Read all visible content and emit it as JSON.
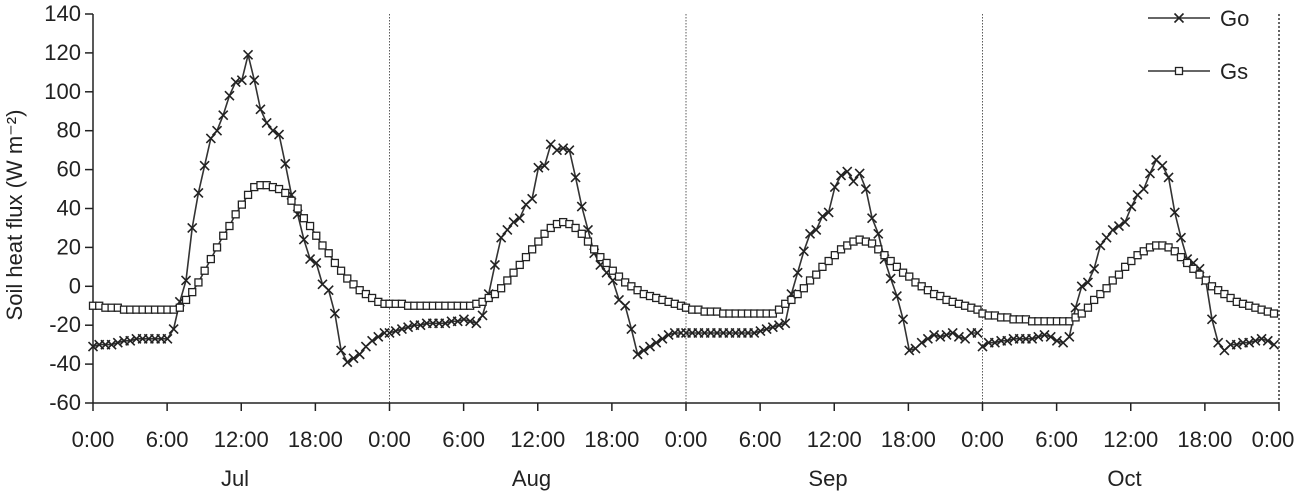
{
  "chart_data": {
    "type": "line",
    "title": "",
    "xlabel": "",
    "ylabel": "Soil heat flux (W m⁻²)",
    "ylim": [
      -60,
      140
    ],
    "yticks": [
      -60,
      -40,
      -20,
      0,
      20,
      40,
      60,
      80,
      100,
      120,
      140
    ],
    "xtick_labels": [
      "0:00",
      "6:00",
      "12:00",
      "18:00",
      "0:00",
      "6:00",
      "12:00",
      "18:00",
      "0:00",
      "6:00",
      "12:00",
      "18:00",
      "0:00",
      "6:00",
      "12:00",
      "18:00",
      "0:00"
    ],
    "panels": [
      "Jul",
      "Aug",
      "Sep",
      "Oct"
    ],
    "grid": false,
    "legend": "top-right",
    "series": [
      {
        "name": "Go",
        "marker": "x",
        "values": [
          [
            -31,
            -30,
            -30,
            -30,
            -29,
            -28,
            -28,
            -27,
            -27,
            -27,
            -27,
            -27,
            -27,
            -22,
            -8,
            3,
            30,
            48,
            62,
            76,
            80,
            88,
            98,
            105,
            106,
            119,
            106,
            91,
            84,
            80,
            78,
            63,
            47,
            37,
            24,
            14,
            12,
            1,
            -2,
            -14,
            -33,
            -39,
            -37,
            -35,
            -31,
            -28,
            -26,
            -24
          ],
          [
            -24,
            -23,
            -22,
            -21,
            -20,
            -20,
            -19,
            -19,
            -19,
            -19,
            -18,
            -18,
            -17,
            -18,
            -19,
            -15,
            -4,
            11,
            25,
            29,
            33,
            35,
            42,
            45,
            61,
            62,
            73,
            70,
            71,
            70,
            56,
            41,
            29,
            17,
            11,
            7,
            3,
            -7,
            -10,
            -22,
            -35,
            -33,
            -31,
            -29,
            -27,
            -25,
            -24,
            -24
          ],
          [
            -24,
            -24,
            -24,
            -24,
            -24,
            -24,
            -24,
            -24,
            -24,
            -24,
            -24,
            -24,
            -23,
            -22,
            -21,
            -20,
            -19,
            -4,
            7,
            18,
            27,
            29,
            36,
            38,
            51,
            57,
            59,
            54,
            58,
            50,
            35,
            27,
            14,
            4,
            -5,
            -17,
            -33,
            -32,
            -29,
            -27,
            -25,
            -26,
            -25,
            -24,
            -26,
            -27,
            -24,
            -24
          ],
          [
            -31,
            -29,
            -29,
            -28,
            -28,
            -27,
            -27,
            -27,
            -27,
            -26,
            -25,
            -26,
            -28,
            -29,
            -26,
            -11,
            0,
            2,
            9,
            21,
            25,
            29,
            31,
            33,
            41,
            47,
            50,
            58,
            65,
            62,
            56,
            38,
            25,
            14,
            12,
            9,
            3,
            -17,
            -29,
            -33,
            -30,
            -30,
            -29,
            -29,
            -28,
            -27,
            -28,
            -30
          ]
        ]
      },
      {
        "name": "Gs",
        "marker": "square",
        "values": [
          [
            -10,
            -10,
            -11,
            -11,
            -11,
            -12,
            -12,
            -12,
            -12,
            -12,
            -12,
            -12,
            -12,
            -12,
            -11,
            -7,
            -3,
            2,
            8,
            14,
            20,
            26,
            31,
            37,
            42,
            47,
            51,
            52,
            52,
            51,
            50,
            48,
            44,
            40,
            35,
            31,
            26,
            21,
            17,
            12,
            8,
            4,
            1,
            -2,
            -4,
            -6,
            -8,
            -9
          ],
          [
            -9,
            -9,
            -9,
            -10,
            -10,
            -10,
            -10,
            -10,
            -10,
            -10,
            -10,
            -10,
            -10,
            -10,
            -9,
            -8,
            -6,
            -4,
            -1,
            3,
            7,
            11,
            15,
            19,
            23,
            27,
            30,
            32,
            33,
            32,
            30,
            27,
            23,
            19,
            15,
            12,
            8,
            5,
            2,
            0,
            -2,
            -4,
            -5,
            -6,
            -7,
            -8,
            -9,
            -10
          ],
          [
            -11,
            -12,
            -12,
            -13,
            -13,
            -13,
            -14,
            -14,
            -14,
            -14,
            -14,
            -14,
            -14,
            -14,
            -14,
            -12,
            -9,
            -7,
            -4,
            -1,
            3,
            6,
            10,
            13,
            16,
            19,
            21,
            23,
            24,
            23,
            22,
            19,
            16,
            13,
            10,
            7,
            5,
            2,
            0,
            -2,
            -4,
            -5,
            -7,
            -8,
            -9,
            -10,
            -11,
            -12
          ],
          [
            -14,
            -15,
            -15,
            -16,
            -16,
            -17,
            -17,
            -17,
            -18,
            -18,
            -18,
            -18,
            -18,
            -18,
            -18,
            -16,
            -14,
            -11,
            -7,
            -4,
            -1,
            3,
            6,
            10,
            13,
            16,
            18,
            20,
            21,
            21,
            20,
            18,
            15,
            12,
            9,
            6,
            3,
            0,
            -2,
            -4,
            -6,
            -8,
            -9,
            -10,
            -11,
            -12,
            -13,
            -14
          ]
        ]
      }
    ]
  }
}
